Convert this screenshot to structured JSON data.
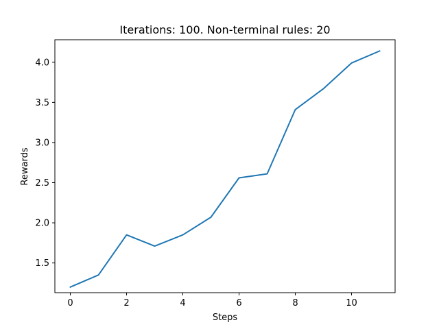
{
  "chart_data": {
    "type": "line",
    "title": "Iterations: 100. Non-terminal rules: 20",
    "xlabel": "Steps",
    "ylabel": "Rewards",
    "xlim": [
      -0.55,
      11.55
    ],
    "ylim": [
      1.13,
      4.28
    ],
    "xticks": [
      0,
      2,
      4,
      6,
      8,
      10
    ],
    "xtick_labels": [
      "0",
      "2",
      "4",
      "6",
      "8",
      "10"
    ],
    "yticks": [
      1.5,
      2.0,
      2.5,
      3.0,
      3.5,
      4.0
    ],
    "ytick_labels": [
      "1.5",
      "2.0",
      "2.5",
      "3.0",
      "3.5",
      "4.0"
    ],
    "grid": false,
    "legend": "none",
    "series": [
      {
        "color": "#1f77b4",
        "x": [
          0,
          1,
          2,
          3,
          4,
          5,
          6,
          7,
          8,
          9,
          10,
          11
        ],
        "y": [
          1.2,
          1.35,
          1.85,
          1.71,
          1.85,
          2.07,
          2.56,
          2.61,
          3.41,
          3.67,
          3.99,
          4.14
        ]
      }
    ]
  }
}
